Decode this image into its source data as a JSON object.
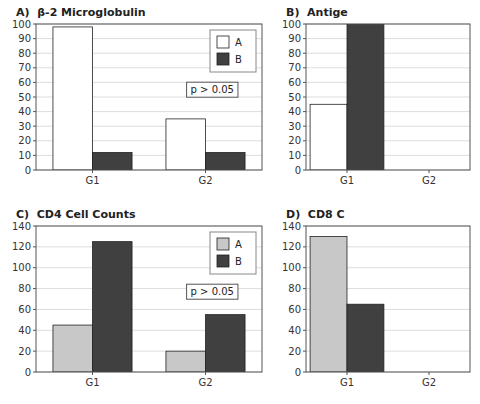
{
  "chart_data": [
    {
      "type": "bar",
      "title": "A)  β-2 Microglobulin",
      "categories": [
        "G1",
        "G2"
      ],
      "series": [
        {
          "name": "A",
          "color": "white",
          "values": [
            98,
            35
          ]
        },
        {
          "name": "B",
          "color": "#404040",
          "values": [
            12,
            12
          ]
        }
      ],
      "ylim": [
        0,
        100
      ],
      "yticks": [
        0,
        10,
        20,
        30,
        40,
        50,
        60,
        70,
        80,
        90,
        100
      ],
      "grid": true,
      "legend": "upper right",
      "annotations": [
        "p > 0.05"
      ]
    },
    {
      "type": "bar",
      "title": "B)  Antige",
      "categories": [
        "G1",
        "G2"
      ],
      "series": [
        {
          "color": "white",
          "values": [
            45,
            0
          ]
        },
        {
          "color": "#404040",
          "values": [
            100,
            0
          ]
        }
      ],
      "ylim": [
        0,
        100
      ],
      "yticks": [
        0,
        10,
        20,
        30,
        40,
        50,
        60,
        70,
        80,
        90,
        100
      ],
      "grid": true
    },
    {
      "type": "bar",
      "title": "C)  CD4 Cell Counts",
      "categories": [
        "G1",
        "G2"
      ],
      "series": [
        {
          "name": "A",
          "color": "#c8c8c8",
          "values": [
            45,
            20
          ]
        },
        {
          "name": "B",
          "color": "#404040",
          "values": [
            125,
            55
          ]
        }
      ],
      "ylim": [
        0,
        140
      ],
      "yticks": [
        0,
        20,
        40,
        60,
        80,
        100,
        120,
        140
      ],
      "grid": true,
      "legend": "upper right",
      "annotations": [
        "p > 0.05"
      ]
    },
    {
      "type": "bar",
      "title": "D)  CD8 C",
      "categories": [
        "G1",
        "G2"
      ],
      "series": [
        {
          "color": "#c8c8c8",
          "values": [
            130,
            0
          ]
        },
        {
          "color": "#404040",
          "values": [
            65,
            0
          ]
        }
      ],
      "ylim": [
        0,
        140
      ],
      "yticks": [
        0,
        20,
        40,
        60,
        80,
        100,
        120,
        140
      ],
      "grid": true
    }
  ]
}
